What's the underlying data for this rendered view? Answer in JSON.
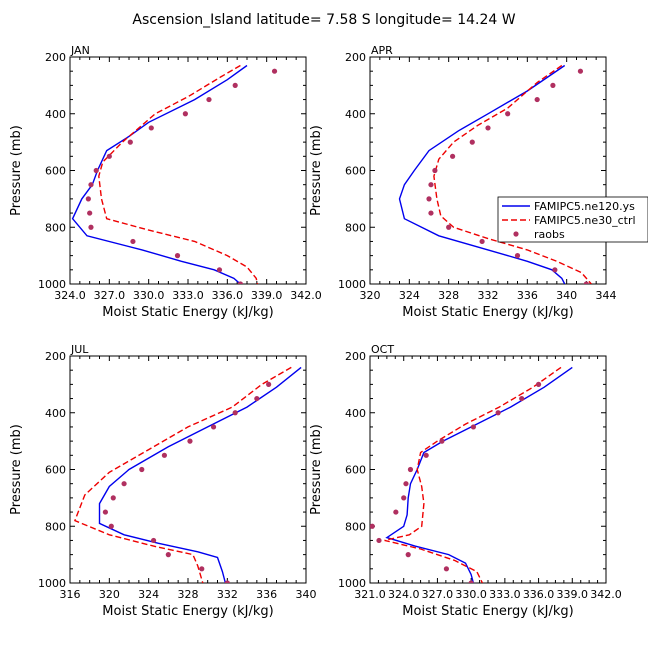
{
  "title": "Ascension_Island  latitude= 7.58 S longitude= 14.24 W",
  "legend": [
    {
      "label": "FAMIPC5.ne120.ys",
      "style": "solid",
      "color": "#0000ee"
    },
    {
      "label": "FAMIPC5.ne30_ctrl",
      "style": "dashed",
      "color": "#ee0000"
    },
    {
      "label": "raobs",
      "style": "dot",
      "color": "#b03060"
    }
  ],
  "chart_data": [
    {
      "type": "line",
      "panel": "JAN",
      "xlabel": "Moist Static Energy (kJ/kg)",
      "ylabel": "Pressure (mb)",
      "xlim": [
        324.0,
        342.0
      ],
      "ylim": [
        1000,
        200
      ],
      "xticks": [
        "324.0",
        "327.0",
        "330.0",
        "333.0",
        "336.0",
        "339.0",
        "342.0"
      ],
      "yticks": [
        "200",
        "400",
        "600",
        "800",
        "1000"
      ],
      "series": [
        {
          "name": "FAMIPC5.ne120.ys",
          "style": "solid",
          "color": "#0000ee",
          "points": [
            [
              337.5,
              230
            ],
            [
              336,
              280
            ],
            [
              333.5,
              350
            ],
            [
              330,
              430
            ],
            [
              328.5,
              480
            ],
            [
              326.8,
              530
            ],
            [
              326.1,
              600
            ],
            [
              325.7,
              650
            ],
            [
              324.9,
              700
            ],
            [
              324.2,
              770
            ],
            [
              325.3,
              830
            ],
            [
              329.5,
              880
            ],
            [
              332.5,
              920
            ],
            [
              335,
              950
            ],
            [
              336.5,
              980
            ],
            [
              337,
              1000
            ]
          ]
        },
        {
          "name": "FAMIPC5.ne30_ctrl",
          "style": "dashed",
          "color": "#ee0000",
          "points": [
            [
              337,
              230
            ],
            [
              335.5,
              270
            ],
            [
              333,
              340
            ],
            [
              330.5,
              400
            ],
            [
              329,
              460
            ],
            [
              328,
              500
            ],
            [
              326.5,
              570
            ],
            [
              326.2,
              620
            ],
            [
              326.4,
              700
            ],
            [
              326.8,
              770
            ],
            [
              330,
              810
            ],
            [
              333.5,
              850
            ],
            [
              336,
              900
            ],
            [
              337.5,
              940
            ],
            [
              338.2,
              980
            ],
            [
              338.3,
              1000
            ]
          ]
        },
        {
          "name": "raobs",
          "style": "dot",
          "color": "#b03060",
          "points": [
            [
              339.6,
              250
            ],
            [
              336.6,
              300
            ],
            [
              334.6,
              350
            ],
            [
              332.8,
              400
            ],
            [
              330.2,
              450
            ],
            [
              328.6,
              500
            ],
            [
              327,
              550
            ],
            [
              326,
              600
            ],
            [
              325.6,
              650
            ],
            [
              325.4,
              700
            ],
            [
              325.5,
              750
            ],
            [
              325.6,
              800
            ],
            [
              328.8,
              850
            ],
            [
              332.2,
              900
            ],
            [
              335.4,
              950
            ],
            [
              337,
              1000
            ]
          ]
        }
      ]
    },
    {
      "type": "line",
      "panel": "APR",
      "xlabel": "Moist Static Energy (kJ/kg)",
      "ylabel": "Pressure (mb)",
      "xlim": [
        320,
        344
      ],
      "ylim": [
        1000,
        200
      ],
      "xticks": [
        "320",
        "324",
        "328",
        "332",
        "336",
        "340",
        "344"
      ],
      "yticks": [
        "200",
        "400",
        "600",
        "800",
        "1000"
      ],
      "series": [
        {
          "name": "FAMIPC5.ne120.ys",
          "style": "solid",
          "color": "#0000ee",
          "points": [
            [
              339.8,
              230
            ],
            [
              336,
              320
            ],
            [
              332,
              400
            ],
            [
              329,
              460
            ],
            [
              326,
              530
            ],
            [
              324.5,
              600
            ],
            [
              323.5,
              650
            ],
            [
              323,
              700
            ],
            [
              323.5,
              770
            ],
            [
              327,
              830
            ],
            [
              332,
              880
            ],
            [
              336,
              920
            ],
            [
              338.5,
              950
            ],
            [
              339.5,
              980
            ],
            [
              339.8,
              1000
            ]
          ]
        },
        {
          "name": "FAMIPC5.ne30_ctrl",
          "style": "dashed",
          "color": "#ee0000",
          "points": [
            [
              339.5,
              230
            ],
            [
              337,
              290
            ],
            [
              334,
              380
            ],
            [
              331,
              440
            ],
            [
              328.5,
              500
            ],
            [
              327,
              560
            ],
            [
              326.5,
              620
            ],
            [
              326.8,
              700
            ],
            [
              327.2,
              760
            ],
            [
              328.5,
              800
            ],
            [
              332,
              840
            ],
            [
              336,
              880
            ],
            [
              339,
              920
            ],
            [
              341.5,
              960
            ],
            [
              342.5,
              1000
            ]
          ]
        },
        {
          "name": "raobs",
          "style": "dot",
          "color": "#b03060",
          "points": [
            [
              341.4,
              250
            ],
            [
              338.6,
              300
            ],
            [
              337,
              350
            ],
            [
              334,
              400
            ],
            [
              332,
              450
            ],
            [
              330.4,
              500
            ],
            [
              328.4,
              550
            ],
            [
              326.6,
              600
            ],
            [
              326.2,
              650
            ],
            [
              326,
              700
            ],
            [
              326.2,
              750
            ],
            [
              328,
              800
            ],
            [
              331.4,
              850
            ],
            [
              335,
              900
            ],
            [
              338.8,
              950
            ],
            [
              342,
              1000
            ]
          ]
        }
      ]
    },
    {
      "type": "line",
      "panel": "JUL",
      "xlabel": "Moist Static Energy (kJ/kg)",
      "ylabel": "Pressure (mb)",
      "xlim": [
        316,
        340
      ],
      "ylim": [
        1000,
        200
      ],
      "xticks": [
        "316",
        "320",
        "324",
        "328",
        "332",
        "336",
        "340"
      ],
      "yticks": [
        "200",
        "400",
        "600",
        "800",
        "1000"
      ],
      "series": [
        {
          "name": "FAMIPC5.ne120.ys",
          "style": "solid",
          "color": "#0000ee",
          "points": [
            [
              339.5,
              240
            ],
            [
              337,
              310
            ],
            [
              334,
              380
            ],
            [
              330,
              450
            ],
            [
              326,
              520
            ],
            [
              322,
              600
            ],
            [
              320,
              660
            ],
            [
              319,
              720
            ],
            [
              319,
              790
            ],
            [
              321.5,
              830
            ],
            [
              325,
              860
            ],
            [
              329,
              890
            ],
            [
              331,
              910
            ],
            [
              331.5,
              960
            ],
            [
              331.8,
              1000
            ]
          ]
        },
        {
          "name": "FAMIPC5.ne30_ctrl",
          "style": "dashed",
          "color": "#ee0000",
          "points": [
            [
              338.5,
              240
            ],
            [
              335.5,
              300
            ],
            [
              332.5,
              380
            ],
            [
              328,
              450
            ],
            [
              324,
              530
            ],
            [
              320,
              610
            ],
            [
              317.5,
              690
            ],
            [
              316.5,
              780
            ],
            [
              320,
              830
            ],
            [
              324.5,
              870
            ],
            [
              328.5,
              900
            ],
            [
              329,
              940
            ],
            [
              329.5,
              1000
            ]
          ]
        },
        {
          "name": "raobs",
          "style": "dot",
          "color": "#b03060",
          "points": [
            [
              336.2,
              300
            ],
            [
              335,
              350
            ],
            [
              332.8,
              400
            ],
            [
              330.6,
              450
            ],
            [
              328.2,
              500
            ],
            [
              325.6,
              550
            ],
            [
              323.3,
              600
            ],
            [
              321.5,
              650
            ],
            [
              320.4,
              700
            ],
            [
              319.6,
              750
            ],
            [
              320.2,
              800
            ],
            [
              324.5,
              850
            ],
            [
              326,
              900
            ],
            [
              329.4,
              950
            ],
            [
              332,
              1000
            ]
          ]
        }
      ]
    },
    {
      "type": "line",
      "panel": "OCT",
      "xlabel": "Moist Static Energy (kJ/kg)",
      "ylabel": "Pressure (mb)",
      "xlim": [
        321.0,
        342.0
      ],
      "ylim": [
        1000,
        200
      ],
      "xticks": [
        "321.0",
        "324.0",
        "327.0",
        "330.0",
        "333.0",
        "336.0",
        "339.0",
        "342.0"
      ],
      "yticks": [
        "200",
        "400",
        "600",
        "800",
        "1000"
      ],
      "series": [
        {
          "name": "FAMIPC5.ne120.ys",
          "style": "solid",
          "color": "#0000ee",
          "points": [
            [
              339,
              240
            ],
            [
              336.5,
              310
            ],
            [
              333.5,
              380
            ],
            [
              330.5,
              440
            ],
            [
              327.5,
              500
            ],
            [
              325.8,
              540
            ],
            [
              325.2,
              600
            ],
            [
              324.6,
              650
            ],
            [
              324.4,
              700
            ],
            [
              324.3,
              760
            ],
            [
              324,
              800
            ],
            [
              322.5,
              840
            ],
            [
              325,
              870
            ],
            [
              328,
              900
            ],
            [
              329.5,
              930
            ],
            [
              330,
              970
            ],
            [
              330.2,
              1000
            ]
          ]
        },
        {
          "name": "FAMIPC5.ne30_ctrl",
          "style": "dashed",
          "color": "#ee0000",
          "points": [
            [
              338,
              240
            ],
            [
              335.5,
              310
            ],
            [
              332.5,
              380
            ],
            [
              329.5,
              440
            ],
            [
              327,
              500
            ],
            [
              325.5,
              540
            ],
            [
              325.2,
              600
            ],
            [
              325.6,
              660
            ],
            [
              325.8,
              720
            ],
            [
              325.6,
              800
            ],
            [
              324.5,
              830
            ],
            [
              322.3,
              850
            ],
            [
              325.5,
              880
            ],
            [
              328.5,
              920
            ],
            [
              330.5,
              960
            ],
            [
              331,
              1000
            ]
          ]
        },
        {
          "name": "raobs",
          "style": "dot",
          "color": "#b03060",
          "points": [
            [
              336,
              300
            ],
            [
              334.5,
              350
            ],
            [
              332.4,
              400
            ],
            [
              330.2,
              450
            ],
            [
              327.4,
              500
            ],
            [
              326,
              550
            ],
            [
              324.6,
              600
            ],
            [
              324.2,
              650
            ],
            [
              324,
              700
            ],
            [
              323.3,
              750
            ],
            [
              321.2,
              800
            ],
            [
              321.8,
              850
            ],
            [
              324.4,
              900
            ],
            [
              327.8,
              950
            ],
            [
              330,
              1000
            ]
          ]
        }
      ]
    }
  ]
}
